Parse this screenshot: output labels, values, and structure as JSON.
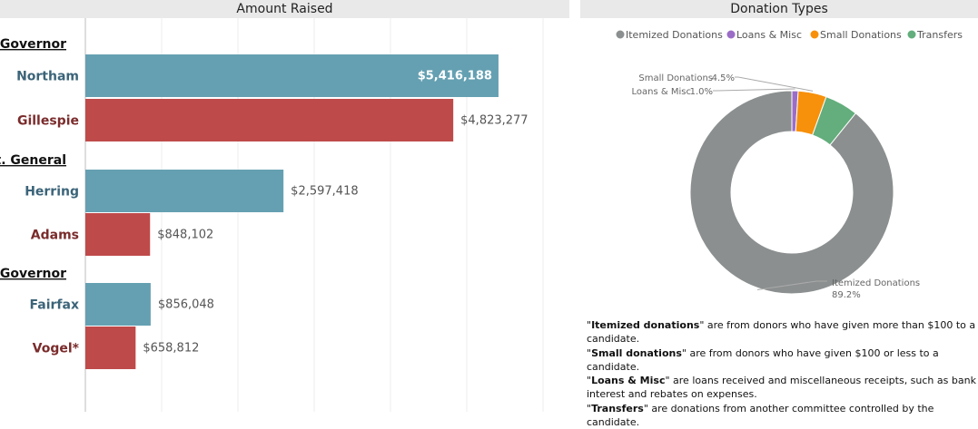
{
  "left_panel": {
    "title": "Amount Raised"
  },
  "right_panel": {
    "title": "Donation Types"
  },
  "chart_data": [
    {
      "type": "bar",
      "orientation": "horizontal",
      "title": "Amount Raised",
      "groups": [
        "Governor",
        "Att. General",
        "Lt. Governor"
      ],
      "categories": [
        "Northam",
        "Gillespie",
        "Herring",
        "Adams",
        "Fairfax",
        "Vogel*"
      ],
      "category_group": [
        "Governor",
        "Governor",
        "Att. General",
        "Att. General",
        "Lt. Governor",
        "Lt. Governor"
      ],
      "values": [
        5416188,
        4823277,
        2597418,
        848102,
        856048,
        658812
      ],
      "value_labels": [
        "$5,416,188",
        "$4,823,277",
        "$2,597,418",
        "$848,102",
        "$856,048",
        "$658,812"
      ],
      "party_colors": [
        "#65a0b2",
        "#bf4a4a",
        "#65a0b2",
        "#bf4a4a",
        "#65a0b2",
        "#bf4a4a"
      ],
      "label_colors": [
        "#3b6479",
        "#7a2b2b",
        "#3b6479",
        "#7a2b2b",
        "#3b6479",
        "#7a2b2b"
      ],
      "xlim": [
        0,
        6000000
      ],
      "grid": true,
      "xaxis_labels": false
    },
    {
      "type": "pie",
      "variant": "donut",
      "title": "Donation Types",
      "legend_position": "top",
      "categories": [
        "Itemized Donations",
        "Loans & Misc",
        "Small Donations",
        "Transfers"
      ],
      "values": [
        89.2,
        1.0,
        4.5,
        5.3
      ],
      "colors": [
        "#8b8f8f",
        "#9b6dc7",
        "#f7900a",
        "#63ae7c"
      ],
      "data_labels": [
        {
          "name": "Itemized Donations",
          "pct": "89.2%"
        },
        {
          "name": "Loans & Misc",
          "pct": "1.0%"
        },
        {
          "name": "Small Donations",
          "pct": "4.5%"
        }
      ]
    }
  ],
  "notes": [
    {
      "term": "Itemized donations",
      "text": " are from donors who have given more than $100 to a candidate."
    },
    {
      "term": "Small donations",
      "text": " are from donors who have given $100 or less to a candidate."
    },
    {
      "term": "Loans & Misc",
      "text": " are loans received and miscellaneous receipts, such as bank interest and rebates on expenses."
    },
    {
      "term": "Transfers",
      "text": " are donations from another committee controlled by the candidate."
    }
  ]
}
